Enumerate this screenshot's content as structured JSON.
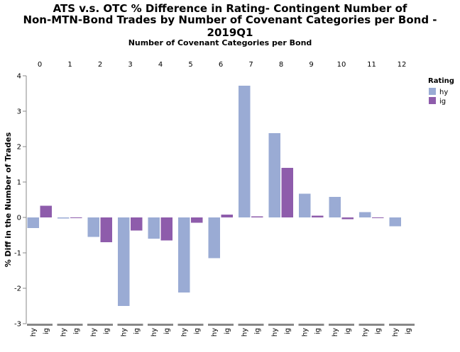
{
  "chart_data": {
    "type": "bar",
    "title_lines": [
      "ATS v.s. OTC % Difference in Rating- Contingent Number of",
      "Non-MTN-Bond Trades by Number of Covenant Categories per Bond - 2019Q1"
    ],
    "column_title": "Number of Covenant Categories per Bond",
    "ylabel": "% Diff in the Number of Trades",
    "ylim": [
      -3,
      4
    ],
    "yticks": [
      "-3",
      "-2",
      "-1",
      "0",
      "1",
      "2",
      "3",
      "4"
    ],
    "columns": [
      "0",
      "1",
      "2",
      "3",
      "4",
      "5",
      "6",
      "7",
      "8",
      "9",
      "10",
      "11",
      "12"
    ],
    "sub_categories": [
      "hy",
      "ig"
    ],
    "legend_title": "Rating",
    "legend_position": "top-right",
    "series": [
      {
        "name": "hy",
        "color": "#9aabd4",
        "values": [
          -0.3,
          -0.03,
          -0.55,
          -2.5,
          -0.6,
          -2.12,
          -1.15,
          3.72,
          2.38,
          0.67,
          0.58,
          0.15,
          -0.25
        ]
      },
      {
        "name": "ig",
        "color": "#8e5cab",
        "values": [
          0.33,
          0.0,
          -0.7,
          -0.37,
          -0.65,
          -0.15,
          0.08,
          0.03,
          1.4,
          0.05,
          -0.05,
          0.0,
          null
        ]
      }
    ]
  }
}
